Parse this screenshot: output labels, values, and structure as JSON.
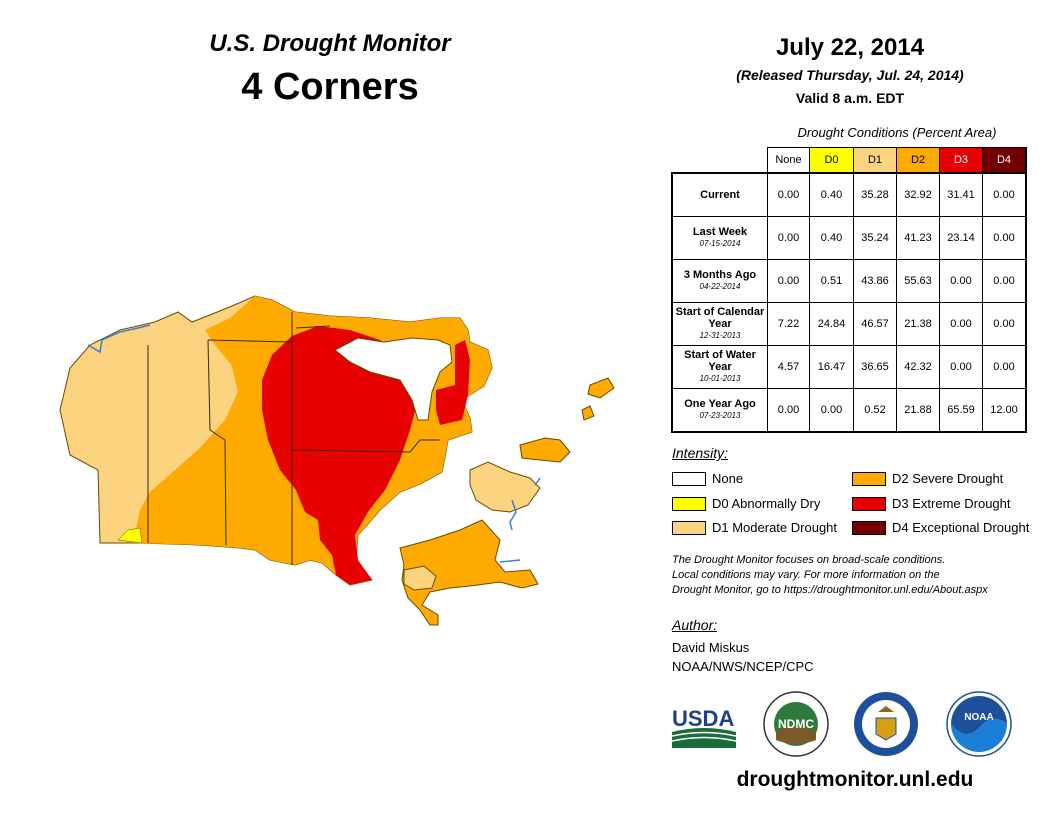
{
  "header": {
    "monitor_title": "U.S. Drought Monitor",
    "region": "4 Corners",
    "date": "July 22, 2014",
    "released": "(Released Thursday, Jul. 24, 2014)",
    "valid": "Valid 8 a.m. EDT"
  },
  "table": {
    "caption": "Drought Conditions (Percent Area)",
    "columns": [
      "None",
      "D0",
      "D1",
      "D2",
      "D3",
      "D4"
    ],
    "column_colors": [
      "#ffffff",
      "#ffff00",
      "#fcd37f",
      "#ffaa00",
      "#e60000",
      "#730000"
    ],
    "rows": [
      {
        "label": "Current",
        "date": "",
        "values": [
          "0.00",
          "0.40",
          "35.28",
          "32.92",
          "31.41",
          "0.00"
        ]
      },
      {
        "label": "Last Week",
        "date": "07-15-2014",
        "values": [
          "0.00",
          "0.40",
          "35.24",
          "41.23",
          "23.14",
          "0.00"
        ]
      },
      {
        "label": "3 Months Ago",
        "date": "04-22-2014",
        "values": [
          "0.00",
          "0.51",
          "43.86",
          "55.63",
          "0.00",
          "0.00"
        ]
      },
      {
        "label": "Start of Calendar Year",
        "date": "12-31-2013",
        "values": [
          "7.22",
          "24.84",
          "46.57",
          "21.38",
          "0.00",
          "0.00"
        ]
      },
      {
        "label": "Start of Water Year",
        "date": "10-01-2013",
        "values": [
          "4.57",
          "16.47",
          "36.65",
          "42.32",
          "0.00",
          "0.00"
        ]
      },
      {
        "label": "One Year Ago",
        "date": "07-23-2013",
        "values": [
          "0.00",
          "0.00",
          "0.52",
          "21.88",
          "65.59",
          "12.00"
        ]
      }
    ]
  },
  "legend": {
    "title": "Intensity:",
    "items": [
      {
        "label": "None",
        "color": "#ffffff"
      },
      {
        "label": "D0 Abnormally Dry",
        "color": "#ffff00"
      },
      {
        "label": "D1 Moderate Drought",
        "color": "#fcd37f"
      },
      {
        "label": "D2 Severe Drought",
        "color": "#ffaa00"
      },
      {
        "label": "D3 Extreme Drought",
        "color": "#e60000"
      },
      {
        "label": "D4 Exceptional Drought",
        "color": "#730000"
      }
    ]
  },
  "note": {
    "line1": "The Drought Monitor focuses on broad-scale conditions.",
    "line2": "Local conditions may vary. For more information on the",
    "line3": "Drought Monitor, go to https://droughtmonitor.unl.edu/About.aspx"
  },
  "author": {
    "label": "Author:",
    "name": "David Miskus",
    "org": "NOAA/NWS/NCEP/CPC"
  },
  "logos": {
    "usda": "USDA",
    "ndmc": "NDMC",
    "noaa": "NOAA"
  },
  "footer_url": "droughtmonitor.unl.edu"
}
